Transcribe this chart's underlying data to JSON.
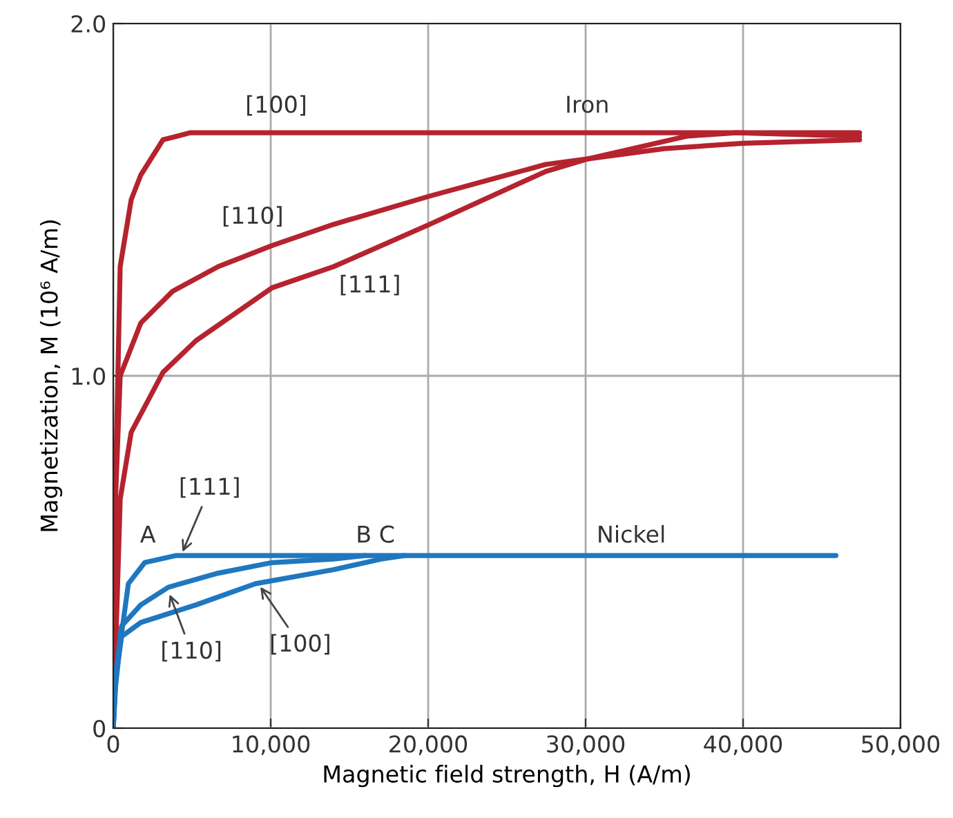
{
  "chart_data": {
    "type": "line",
    "xlabel": "Magnetic field strength, H (A/m)",
    "ylabel": "Magnetization, M (10⁶ A/m)",
    "xlim": [
      0,
      50000
    ],
    "ylim": [
      0,
      2.0
    ],
    "xticks": [
      0,
      {
        "value": 10000,
        "label": "10,000"
      },
      {
        "value": 20000,
        "label": "20,000"
      },
      {
        "value": 30000,
        "label": "30,000"
      },
      {
        "value": 40000,
        "label": "40,000"
      },
      {
        "value": 50000,
        "label": "50,000"
      }
    ],
    "yticks": [
      0,
      {
        "value": 1,
        "label": "1.0"
      },
      {
        "value": 2,
        "label": "2.0"
      }
    ],
    "grid": true,
    "legend": false,
    "marker": "none",
    "line_style": "solid",
    "series": [
      {
        "color": "#b5232e",
        "x": [
          0,
          150,
          440,
          1140,
          1750,
          3160,
          4900,
          10000,
          20000,
          30000,
          40000,
          47400
        ],
        "values": [
          0,
          0.7,
          1.31,
          1.5,
          1.57,
          1.67,
          1.69,
          1.69,
          1.69,
          1.69,
          1.69,
          1.69
        ]
      },
      {
        "color": "#b5232e",
        "x": [
          0,
          100,
          440,
          1750,
          3770,
          6670,
          10090,
          14000,
          20090,
          27460,
          30000,
          35000,
          40000,
          47400
        ],
        "values": [
          0,
          0.6,
          1.0,
          1.15,
          1.24,
          1.31,
          1.37,
          1.43,
          1.51,
          1.6,
          1.615,
          1.645,
          1.66,
          1.67
        ]
      },
      {
        "color": "#b5232e",
        "x": [
          0,
          440,
          1140,
          3160,
          5260,
          10090,
          14000,
          20090,
          27460,
          30090,
          36400,
          39560,
          47400
        ],
        "values": [
          0,
          0.65,
          0.84,
          1.01,
          1.1,
          1.25,
          1.31,
          1.43,
          1.58,
          1.615,
          1.68,
          1.69,
          1.68
        ]
      },
      {
        "color": "#1f77c0",
        "x": [
          0,
          150,
          440,
          960,
          2000,
          4000,
          10000,
          20000,
          30000,
          40000,
          45900
        ],
        "values": [
          0,
          0.12,
          0.24,
          0.41,
          0.47,
          0.49,
          0.49,
          0.49,
          0.49,
          0.49,
          0.49
        ]
      },
      {
        "color": "#1f77c0",
        "x": [
          0,
          150,
          530,
          1750,
          3500,
          6670,
          10090,
          14000,
          16000
        ],
        "values": [
          0,
          0.15,
          0.29,
          0.35,
          0.4,
          0.44,
          0.47,
          0.48,
          0.49
        ]
      },
      {
        "color": "#1f77c0",
        "x": [
          0,
          150,
          530,
          1750,
          5260,
          9030,
          14000,
          17000,
          18500
        ],
        "values": [
          0,
          0.14,
          0.26,
          0.3,
          0.35,
          0.41,
          0.45,
          0.48,
          0.49
        ]
      }
    ],
    "annotations": [
      "[100]",
      "Iron",
      "[110]",
      "[111]",
      {
        "text": "[111]",
        "x": 4300,
        "y": 0.49
      },
      "A",
      "B C",
      "Nickel",
      {
        "text": "[110]",
        "x": 3500,
        "y": 0.39
      },
      {
        "text": "[100]",
        "x": 9200,
        "y": 0.41
      }
    ]
  }
}
